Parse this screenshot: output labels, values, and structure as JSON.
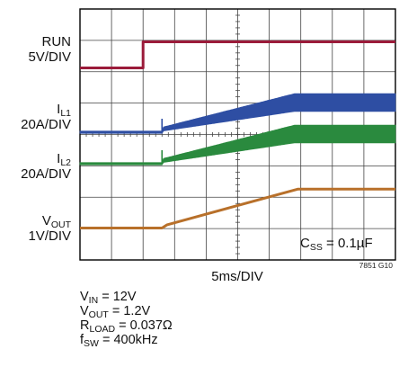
{
  "chart_data": {
    "type": "line",
    "xlabel": "5ms/DIV",
    "figure_id": "7851 G10",
    "annotation": {
      "main": "C",
      "sub": "SS",
      "rest": " = 0.1µF"
    },
    "grid": true,
    "x_divisions": 10,
    "y_divisions": 8,
    "xlim": [
      0,
      50
    ],
    "x_unit": "ms",
    "channel_labels": [
      {
        "main": "RUN",
        "sub": "",
        "scale": "5V/DIV"
      },
      {
        "main": "I",
        "sub": "L1",
        "scale": "20A/DIV"
      },
      {
        "main": "I",
        "sub": "L2",
        "scale": "20A/DIV"
      },
      {
        "main": "V",
        "sub": "OUT",
        "scale": "1V/DIV"
      }
    ],
    "series": [
      {
        "key": "run",
        "color": "#9b1b3a",
        "ripple": 0,
        "x": [
          0,
          10,
          10,
          50
        ],
        "y": [
          0,
          0,
          1,
          1
        ]
      },
      {
        "key": "il1",
        "color": "#2e4ea3",
        "ripple": 0.9,
        "x": [
          0,
          13,
          13,
          34,
          50
        ],
        "y": [
          0,
          0,
          0.6,
          6,
          6
        ]
      },
      {
        "key": "il2",
        "color": "#2a8a3e",
        "ripple": 0.9,
        "x": [
          0,
          13,
          13,
          34,
          50
        ],
        "y": [
          0,
          0,
          0.6,
          6,
          6
        ]
      },
      {
        "key": "vout",
        "color": "#b8702a",
        "ripple": 0,
        "x": [
          0,
          13,
          13.8,
          34.5,
          50
        ],
        "y": [
          0,
          0,
          0.1,
          1.2,
          1.2
        ]
      }
    ]
  },
  "conditions": [
    {
      "main": "V",
      "sub": "IN",
      "rest": " = 12V"
    },
    {
      "main": "V",
      "sub": "OUT",
      "rest": " = 1.2V"
    },
    {
      "main": "R",
      "sub": "LOAD",
      "rest": " = 0.037Ω"
    },
    {
      "main": "f",
      "sub": "SW",
      "rest": " = 400kHz"
    }
  ]
}
